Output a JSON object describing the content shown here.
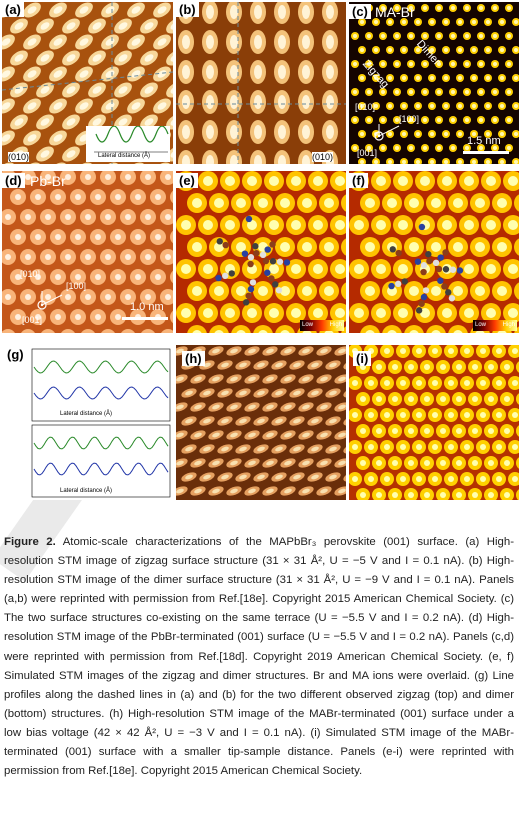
{
  "figure": {
    "panels": {
      "a": {
        "label": "(a)",
        "direction": "(010)"
      },
      "b": {
        "label": "(b)",
        "direction": "(010)"
      },
      "c": {
        "label": "(c)",
        "title": "MA-Br",
        "dimer": "Dimer",
        "zigzag": "Zigzag",
        "dir1": "[010]",
        "dir2": "[100]",
        "dir3": "[001]",
        "scale": "1.5 nm"
      },
      "d": {
        "label": "(d)",
        "title": "Pb-Br",
        "dir1": "[010]",
        "dir2": "[100]",
        "dir3": "[001]",
        "scale": "1.0 nm"
      },
      "e": {
        "label": "(e)",
        "legend_low": "Low",
        "legend_high": "High"
      },
      "f": {
        "label": "(f)",
        "legend_low": "Low",
        "legend_high": "High"
      },
      "g": {
        "label": "(g)",
        "xlabel": "Lateral distance (Å)",
        "ylabel": "Δz (Å)",
        "tag1": "[-100]",
        "tag2": "[100]",
        "ticks": [
          "0",
          "5",
          "10",
          "15",
          "20",
          "25",
          "30"
        ]
      },
      "h": {
        "label": "(h)"
      },
      "i": {
        "label": "(i)"
      },
      "a_inset": {
        "ylabel": "Δz (Å)",
        "xlabel": "Lateral distance (Å)",
        "ticks": [
          "0",
          "5",
          "10",
          "15",
          "20",
          "25",
          "30"
        ]
      }
    }
  },
  "caption": {
    "label": "Figure 2.",
    "text": "Atomic-scale characterizations of the MAPbBr₃ perovskite (001) surface. (a) High-resolution STM image of zigzag surface structure (31 × 31 Å², U = −5 V and I = 0.1 nA). (b) High-resolution STM image of the dimer surface structure (31 × 31 Å², U = −9 V and I = 0.1 nA). Panels (a,b) were reprinted with permission from Ref.[18e]. Copyright 2015 American Chemical Society. (c) The two surface structures co-existing on the same terrace (U = −5.5 V and I = 0.2 nA). (d) High-resolution STM image of the PbBr-terminated (001) surface (U = −5.5 V and I = 0.2 nA). Panels (c,d) were reprinted with permission from Ref.[18d]. Copyright 2019 American Chemical Society.  (e, f) Simulated STM images of the zigzag and dimer structures. Br and MA ions were overlaid. (g) Line profiles along the dashed lines in (a) and (b) for the two different observed zigzag (top) and dimer (bottom) structures. (h) High-resolution STM image of the MABr-terminated (001) surface under a low bias voltage (42 × 42 Å², U = −3 V and I = 0.1 nA). (i) Simulated STM image of the MABr-terminated (001) surface with a smaller tip-sample distance. Panels (e-i) were reprinted with permission from Ref.[18e]. Copyright 2015 American Chemical Society."
  }
}
